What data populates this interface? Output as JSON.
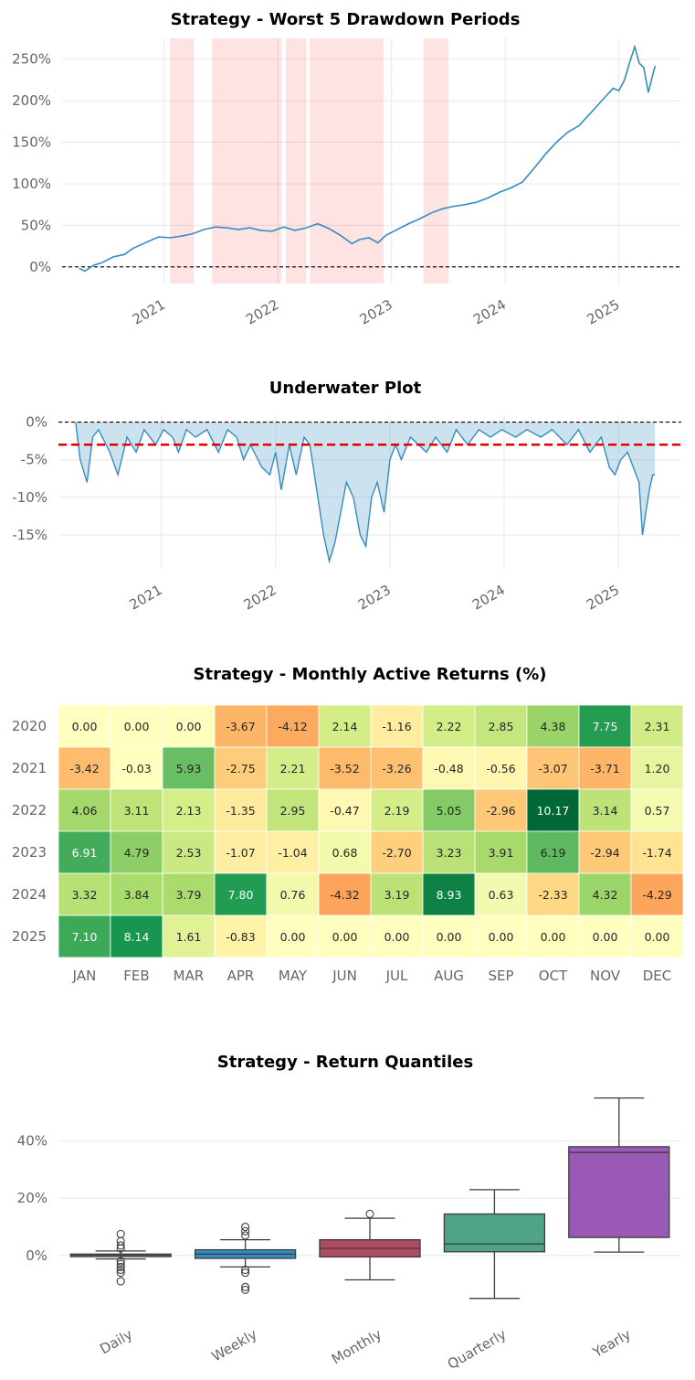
{
  "chart_data": [
    {
      "type": "line",
      "title": "Strategy - Worst 5 Drawdown Periods",
      "x_ticks": [
        "2021",
        "2022",
        "2023",
        "2024",
        "2025"
      ],
      "y_ticks": [
        "0%",
        "50%",
        "100%",
        "150%",
        "200%",
        "250%"
      ],
      "ylim": [
        -20,
        275
      ],
      "xlim": [
        2020.1,
        2025.55
      ],
      "series": [
        {
          "color": "#348dc1",
          "points": [
            [
              2020.25,
              -2
            ],
            [
              2020.3,
              -5
            ],
            [
              2020.38,
              2
            ],
            [
              2020.45,
              5
            ],
            [
              2020.55,
              12
            ],
            [
              2020.65,
              15
            ],
            [
              2020.72,
              22
            ],
            [
              2020.8,
              27
            ],
            [
              2020.88,
              32
            ],
            [
              2020.95,
              36
            ],
            [
              2021.05,
              35
            ],
            [
              2021.15,
              37
            ],
            [
              2021.25,
              40
            ],
            [
              2021.35,
              45
            ],
            [
              2021.45,
              48
            ],
            [
              2021.55,
              47
            ],
            [
              2021.65,
              45
            ],
            [
              2021.75,
              47
            ],
            [
              2021.85,
              44
            ],
            [
              2021.95,
              43
            ],
            [
              2022.05,
              48
            ],
            [
              2022.15,
              44
            ],
            [
              2022.25,
              47
            ],
            [
              2022.35,
              52
            ],
            [
              2022.45,
              46
            ],
            [
              2022.55,
              38
            ],
            [
              2022.65,
              28
            ],
            [
              2022.72,
              33
            ],
            [
              2022.8,
              35
            ],
            [
              2022.88,
              29
            ],
            [
              2022.95,
              38
            ],
            [
              2023.05,
              45
            ],
            [
              2023.15,
              52
            ],
            [
              2023.25,
              58
            ],
            [
              2023.35,
              65
            ],
            [
              2023.45,
              70
            ],
            [
              2023.55,
              73
            ],
            [
              2023.65,
              75
            ],
            [
              2023.75,
              78
            ],
            [
              2023.85,
              83
            ],
            [
              2023.95,
              90
            ],
            [
              2024.05,
              95
            ],
            [
              2024.15,
              102
            ],
            [
              2024.25,
              118
            ],
            [
              2024.35,
              135
            ],
            [
              2024.45,
              150
            ],
            [
              2024.55,
              162
            ],
            [
              2024.65,
              170
            ],
            [
              2024.75,
              185
            ],
            [
              2024.85,
              200
            ],
            [
              2024.95,
              215
            ],
            [
              2025.0,
              212
            ],
            [
              2025.05,
              225
            ],
            [
              2025.1,
              248
            ],
            [
              2025.14,
              265
            ],
            [
              2025.18,
              245
            ],
            [
              2025.22,
              240
            ],
            [
              2025.26,
              210
            ],
            [
              2025.3,
              232
            ],
            [
              2025.32,
              242
            ]
          ]
        }
      ],
      "shaded_periods": [
        [
          2021.05,
          2021.26
        ],
        [
          2021.42,
          2022.03
        ],
        [
          2022.07,
          2022.25
        ],
        [
          2022.28,
          2022.93
        ],
        [
          2023.28,
          2023.5
        ]
      ],
      "zero_line": true,
      "grid": true
    },
    {
      "type": "area",
      "title": "Underwater Plot",
      "x_ticks": [
        "2021",
        "2022",
        "2023",
        "2024",
        "2025"
      ],
      "y_ticks": [
        "0%",
        "-5%",
        "-10%",
        "-15%"
      ],
      "ylim": [
        -19.5,
        0.8
      ],
      "xlim": [
        2020.1,
        2025.55
      ],
      "mean_line": -3.0,
      "series": [
        {
          "color": "#348dc1",
          "points": [
            [
              2020.25,
              0
            ],
            [
              2020.29,
              -5
            ],
            [
              2020.35,
              -8
            ],
            [
              2020.4,
              -2
            ],
            [
              2020.45,
              -1
            ],
            [
              2020.55,
              -4
            ],
            [
              2020.62,
              -7
            ],
            [
              2020.7,
              -2
            ],
            [
              2020.78,
              -4
            ],
            [
              2020.85,
              -1
            ],
            [
              2020.95,
              -3
            ],
            [
              2021.02,
              -1
            ],
            [
              2021.1,
              -2
            ],
            [
              2021.15,
              -4
            ],
            [
              2021.22,
              -1
            ],
            [
              2021.3,
              -2
            ],
            [
              2021.4,
              -1
            ],
            [
              2021.5,
              -4
            ],
            [
              2021.58,
              -1
            ],
            [
              2021.66,
              -2
            ],
            [
              2021.72,
              -5
            ],
            [
              2021.78,
              -3
            ],
            [
              2021.88,
              -6
            ],
            [
              2021.95,
              -7
            ],
            [
              2022.0,
              -4
            ],
            [
              2022.05,
              -9
            ],
            [
              2022.12,
              -3
            ],
            [
              2022.18,
              -7
            ],
            [
              2022.25,
              -2
            ],
            [
              2022.3,
              -3
            ],
            [
              2022.36,
              -9
            ],
            [
              2022.42,
              -15
            ],
            [
              2022.47,
              -18.5
            ],
            [
              2022.52,
              -16
            ],
            [
              2022.57,
              -12
            ],
            [
              2022.62,
              -8
            ],
            [
              2022.68,
              -10
            ],
            [
              2022.74,
              -15
            ],
            [
              2022.79,
              -16.5
            ],
            [
              2022.84,
              -10
            ],
            [
              2022.89,
              -8
            ],
            [
              2022.95,
              -12
            ],
            [
              2023.0,
              -5
            ],
            [
              2023.05,
              -3
            ],
            [
              2023.1,
              -5
            ],
            [
              2023.18,
              -2
            ],
            [
              2023.25,
              -3
            ],
            [
              2023.32,
              -4
            ],
            [
              2023.4,
              -2
            ],
            [
              2023.5,
              -4
            ],
            [
              2023.58,
              -1
            ],
            [
              2023.68,
              -3
            ],
            [
              2023.78,
              -1
            ],
            [
              2023.88,
              -2
            ],
            [
              2023.98,
              -1
            ],
            [
              2024.1,
              -2
            ],
            [
              2024.2,
              -1
            ],
            [
              2024.32,
              -2
            ],
            [
              2024.42,
              -1
            ],
            [
              2024.55,
              -3
            ],
            [
              2024.65,
              -1
            ],
            [
              2024.75,
              -4
            ],
            [
              2024.85,
              -2
            ],
            [
              2024.92,
              -6
            ],
            [
              2024.97,
              -7
            ],
            [
              2025.02,
              -5
            ],
            [
              2025.08,
              -4
            ],
            [
              2025.13,
              -6
            ],
            [
              2025.18,
              -8
            ],
            [
              2025.21,
              -15
            ],
            [
              2025.24,
              -12
            ],
            [
              2025.27,
              -9
            ],
            [
              2025.3,
              -7
            ],
            [
              2025.32,
              -7
            ]
          ]
        }
      ],
      "zero_line": true,
      "grid": true
    },
    {
      "type": "heatmap",
      "title": "Strategy - Monthly Active Returns (%)",
      "rows": [
        "2020",
        "2021",
        "2022",
        "2023",
        "2024",
        "2025"
      ],
      "columns": [
        "JAN",
        "FEB",
        "MAR",
        "APR",
        "MAY",
        "JUN",
        "JUL",
        "AUG",
        "SEP",
        "OCT",
        "NOV",
        "DEC"
      ],
      "values": [
        [
          "0.00",
          "0.00",
          "0.00",
          "-3.67",
          "-4.12",
          "2.14",
          "-1.16",
          "2.22",
          "2.85",
          "4.38",
          "7.75",
          "2.31"
        ],
        [
          "-3.42",
          "-0.03",
          "5.93",
          "-2.75",
          "2.21",
          "-3.52",
          "-3.26",
          "-0.48",
          "-0.56",
          "-3.07",
          "-3.71",
          "1.20"
        ],
        [
          "4.06",
          "3.11",
          "2.13",
          "-1.35",
          "2.95",
          "-0.47",
          "2.19",
          "5.05",
          "-2.96",
          "10.17",
          "3.14",
          "0.57"
        ],
        [
          "6.91",
          "4.79",
          "2.53",
          "-1.07",
          "-1.04",
          "0.68",
          "-2.70",
          "3.23",
          "3.91",
          "6.19",
          "-2.94",
          "-1.74"
        ],
        [
          "3.32",
          "3.84",
          "3.79",
          "7.80",
          "0.76",
          "-4.32",
          "3.19",
          "8.93",
          "0.63",
          "-2.33",
          "4.32",
          "-4.29"
        ],
        [
          "7.10",
          "8.14",
          "1.61",
          "-0.83",
          "0.00",
          "0.00",
          "0.00",
          "0.00",
          "0.00",
          "0.00",
          "0.00",
          "0.00"
        ]
      ],
      "colormap": "RdYlGn",
      "color_range": [
        -10,
        10
      ]
    },
    {
      "type": "box",
      "title": "Strategy - Return Quantiles",
      "categories": [
        "Daily",
        "Weekly",
        "Monthly",
        "Quarterly",
        "Yearly"
      ],
      "y_ticks": [
        "0%",
        "20%",
        "40%"
      ],
      "ylim": [
        -24,
        60
      ],
      "boxes": [
        {
          "name": "Daily",
          "color": "#fedd78",
          "whislo": -1.2,
          "q1": -0.4,
          "med": 0.1,
          "q3": 0.5,
          "whishi": 1.6,
          "fliers": [
            -2,
            -3,
            -4,
            -5,
            -6,
            -9,
            2.5,
            3.5,
            5,
            7.5
          ]
        },
        {
          "name": "Weekly",
          "color": "#348dc1",
          "whislo": -4,
          "q1": -1,
          "med": 0.5,
          "q3": 2,
          "whishi": 5.5,
          "fliers": [
            -5,
            -6,
            -11,
            -12,
            7,
            8.5,
            10
          ]
        },
        {
          "name": "Monthly",
          "color": "#af4b64",
          "whislo": -8.5,
          "q1": -0.5,
          "med": 2.5,
          "q3": 5.5,
          "whishi": 13,
          "fliers": [
            14.5
          ]
        },
        {
          "name": "Quarterly",
          "color": "#4fa487",
          "whislo": -15,
          "q1": 1.3,
          "med": 4,
          "q3": 14.5,
          "whishi": 23,
          "fliers": []
        },
        {
          "name": "Yearly",
          "color": "#9b59b6",
          "whislo": 1.2,
          "q1": 6.3,
          "med": 36,
          "q3": 38,
          "whishi": 55,
          "fliers": []
        }
      ],
      "grid": true
    }
  ]
}
